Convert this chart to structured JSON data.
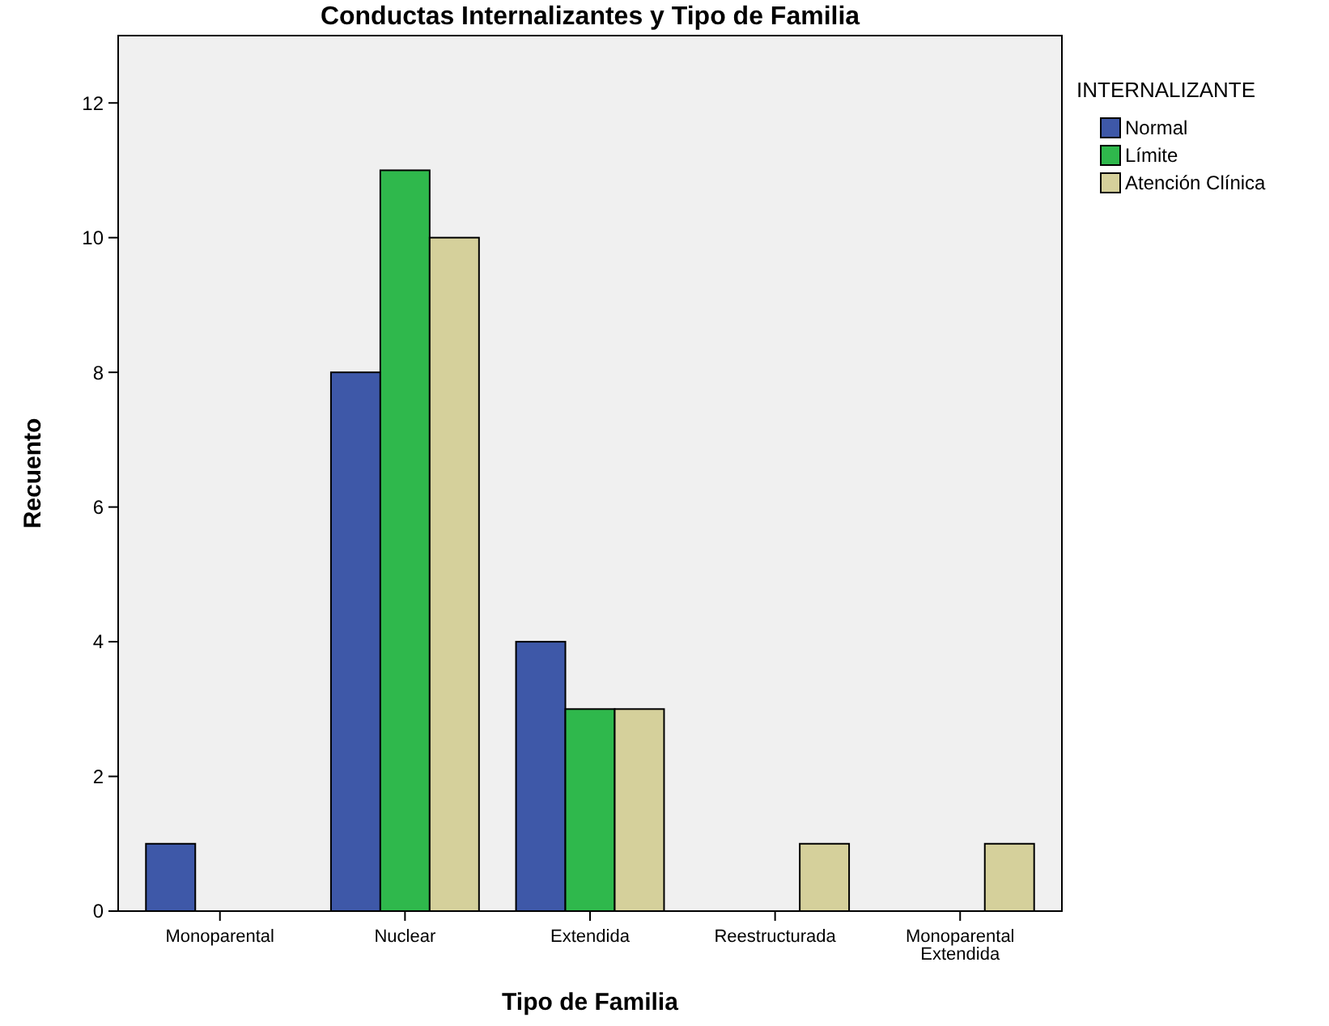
{
  "chart_data": {
    "type": "bar",
    "title": "Conductas Internalizantes y Tipo de Familia",
    "xlabel": "Tipo de Familia",
    "ylabel": "Recuento",
    "legend_title": "INTERNALIZANTE",
    "categories": [
      "Monoparental",
      "Nuclear",
      "Extendida",
      "Reestructurada",
      "Monoparental Extendida"
    ],
    "series": [
      {
        "name": "Normal",
        "color": "#3e58a8",
        "values": [
          1,
          8,
          4,
          0,
          0
        ]
      },
      {
        "name": "Límite",
        "color": "#2fb84c",
        "values": [
          0,
          11,
          3,
          0,
          0
        ]
      },
      {
        "name": "Atención Clínica",
        "color": "#d5d09b",
        "values": [
          0,
          10,
          3,
          1,
          1
        ]
      }
    ],
    "ylim": [
      0,
      13
    ],
    "yticks": [
      0,
      2,
      4,
      6,
      8,
      10,
      12
    ],
    "grid": false,
    "legend": "right"
  }
}
